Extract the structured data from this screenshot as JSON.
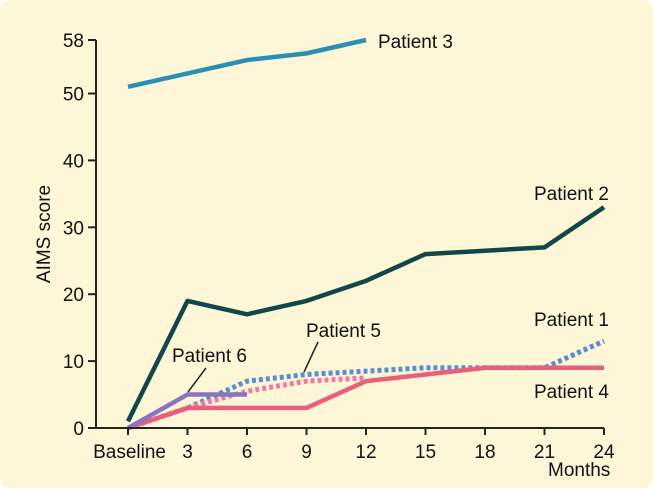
{
  "chart_data": {
    "type": "line",
    "xlabel": "Months",
    "ylabel": "AIMS score",
    "x_categories": [
      "Baseline",
      "3",
      "6",
      "9",
      "12",
      "15",
      "18",
      "21",
      "24"
    ],
    "x": [
      0,
      3,
      6,
      9,
      12,
      15,
      18,
      21,
      24
    ],
    "y_ticks": [
      0,
      10,
      20,
      30,
      40,
      50,
      58
    ],
    "ylim": [
      0,
      58
    ],
    "grid": false,
    "legend": "none",
    "series": [
      {
        "name": "Patient 3",
        "color": "#2a8fb2",
        "dash": false,
        "x": [
          0,
          3,
          6,
          9,
          12
        ],
        "y": [
          51,
          53,
          55,
          56,
          58
        ]
      },
      {
        "name": "Patient 2",
        "color": "#12474a",
        "dash": false,
        "x": [
          0,
          3,
          6,
          9,
          12,
          15,
          18,
          21,
          24
        ],
        "y": [
          1,
          19,
          17,
          19,
          22,
          26,
          26.5,
          27,
          33
        ]
      },
      {
        "name": "Patient 1",
        "color": "#5b8ed0",
        "dash": true,
        "x": [
          0,
          3,
          6,
          9,
          12,
          15,
          18,
          21,
          24
        ],
        "y": [
          0,
          3,
          7,
          8,
          8.5,
          9,
          9,
          9,
          13
        ]
      },
      {
        "name": "Patient 5",
        "color": "#f07aa5",
        "dash": true,
        "x": [
          0,
          3,
          6,
          9,
          12
        ],
        "y": [
          0,
          3,
          5.5,
          7,
          7.5
        ]
      },
      {
        "name": "Patient 4",
        "color": "#e8607a",
        "dash": false,
        "x": [
          0,
          3,
          6,
          9,
          12,
          15,
          18,
          21,
          24
        ],
        "y": [
          0,
          3,
          3,
          3,
          7,
          8,
          9,
          9,
          9
        ]
      },
      {
        "name": "Patient 6",
        "color": "#8a74c0",
        "dash": false,
        "x": [
          0,
          3,
          6
        ],
        "y": [
          0,
          5,
          5
        ]
      }
    ]
  }
}
